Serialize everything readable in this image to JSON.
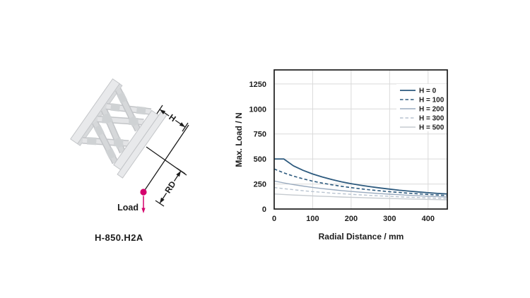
{
  "diagram": {
    "model_label": "H-850.H2A",
    "load_label": "Load",
    "h_dim_label": "H",
    "rd_dim_label": "RD",
    "load_color": "#d4006c",
    "line_color": "#1c1c1c"
  },
  "chart_data": {
    "type": "line",
    "title": "",
    "xlabel": "Radial Distance / mm",
    "ylabel": "Max. Load / N",
    "xlim": [
      0,
      450
    ],
    "ylim": [
      0,
      1390
    ],
    "x_ticks": [
      0,
      100,
      200,
      300,
      400
    ],
    "y_ticks": [
      0,
      250,
      500,
      750,
      1000,
      1250
    ],
    "grid": true,
    "legend_position": "top-right",
    "frame_color": "#1c1c1c",
    "grid_color": "#dadada",
    "x": [
      0,
      25,
      50,
      75,
      100,
      125,
      150,
      175,
      200,
      225,
      250,
      275,
      300,
      325,
      350,
      375,
      400,
      425,
      450
    ],
    "series": [
      {
        "name": "H = 0",
        "color": "#2d5a7e",
        "style": "solid",
        "width": 1.8,
        "values": [
          500,
          500,
          432,
          387,
          350,
          320,
          294,
          272,
          253,
          237,
          223,
          210,
          199,
          188,
          179,
          171,
          163,
          156,
          150
        ]
      },
      {
        "name": "H = 100",
        "color": "#2d5a7e",
        "style": "dashed",
        "width": 1.6,
        "values": [
          400,
          361,
          329,
          302,
          279,
          259,
          242,
          227,
          214,
          202,
          191,
          182,
          173,
          166,
          158,
          152,
          146,
          140,
          135
        ]
      },
      {
        "name": "H = 200",
        "color": "#9aabbf",
        "style": "solid",
        "width": 1.4,
        "values": [
          280,
          261,
          244,
          229,
          216,
          204,
          194,
          184,
          176,
          168,
          161,
          154,
          148,
          143,
          137,
          133,
          128,
          124,
          120
        ]
      },
      {
        "name": "H = 300",
        "color": "#b8c3d0",
        "style": "dashed",
        "width": 1.4,
        "values": [
          215,
          203,
          193,
          183,
          174,
          167,
          159,
          153,
          147,
          141,
          136,
          131,
          127,
          122,
          118,
          115,
          111,
          108,
          105
        ]
      },
      {
        "name": "H = 500",
        "color": "#c6cbd0",
        "style": "solid",
        "width": 1.4,
        "values": [
          150,
          145,
          140,
          136,
          131,
          128,
          124,
          120,
          117,
          114,
          111,
          108,
          105,
          103,
          100,
          98,
          96,
          94,
          92
        ]
      }
    ]
  }
}
